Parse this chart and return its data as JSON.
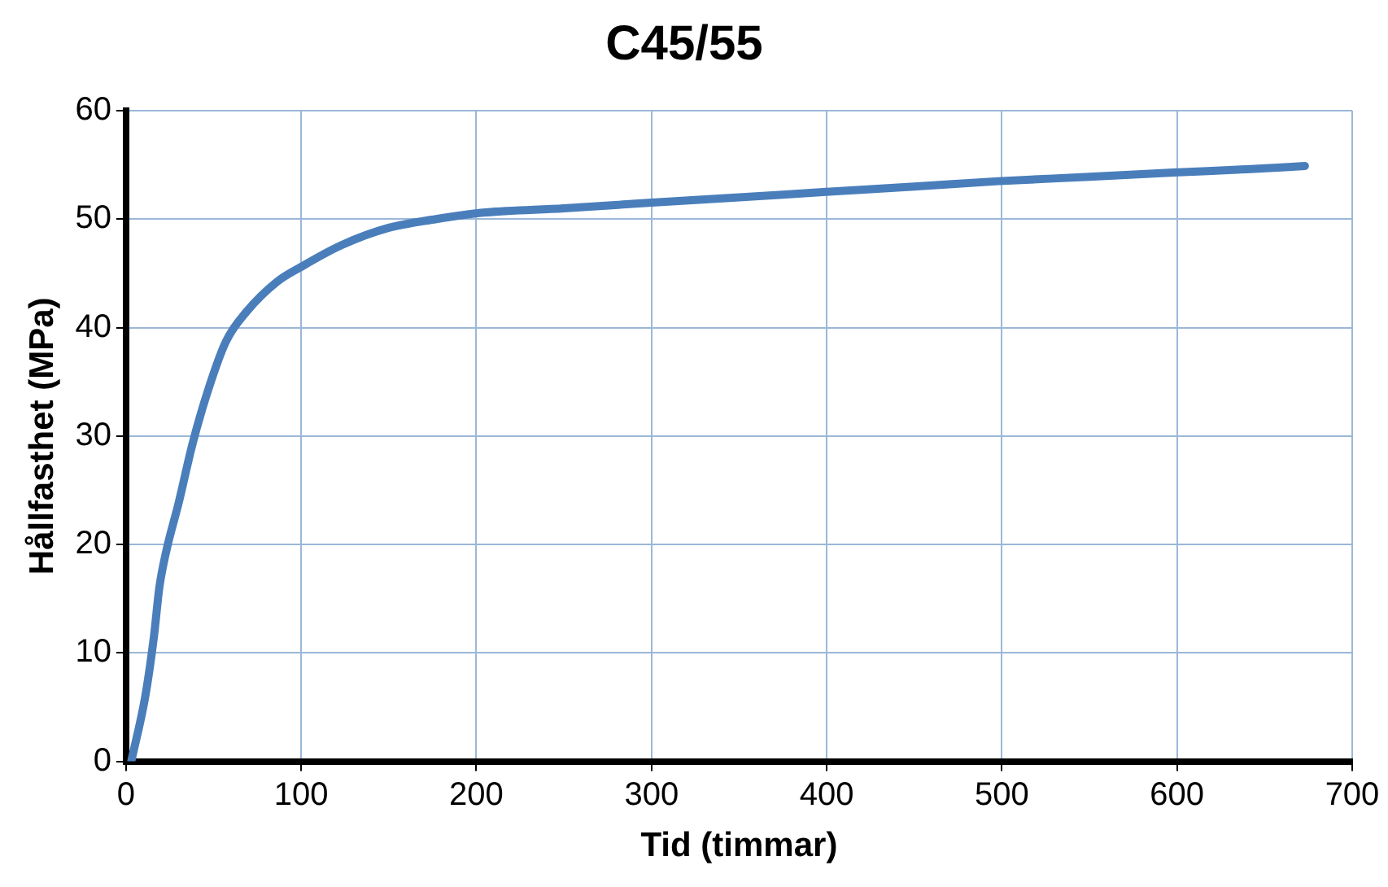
{
  "chart_data": {
    "type": "line",
    "title": "C45/55",
    "xlabel": "Tid (timmar)",
    "ylabel": "Hållfasthet (MPa)",
    "xlim": [
      0,
      700
    ],
    "xticks": [
      0,
      100,
      200,
      300,
      400,
      500,
      600,
      700
    ],
    "ylim": [
      0,
      60
    ],
    "yticks": [
      0,
      10,
      20,
      30,
      40,
      50,
      60
    ],
    "grid": true,
    "legend": false,
    "marker": "none",
    "line_style": "solid",
    "series": [
      {
        "color": "#4a7ebb",
        "x": [
          3,
          11,
          16,
          19,
          23,
          30,
          38,
          47,
          57,
          69,
          86,
          100,
          123,
          150,
          177,
          204,
          250,
          298,
          350,
          398,
          450,
          498,
          550,
          598,
          640,
          673
        ],
        "values": [
          0,
          6,
          11.6,
          16,
          19.4,
          23.8,
          29.3,
          34.3,
          38.7,
          41.5,
          44.2,
          45.6,
          47.6,
          49.2,
          50,
          50.6,
          51,
          51.5,
          52,
          52.5,
          53,
          53.5,
          53.9,
          54.3,
          54.6,
          54.9
        ]
      }
    ]
  }
}
